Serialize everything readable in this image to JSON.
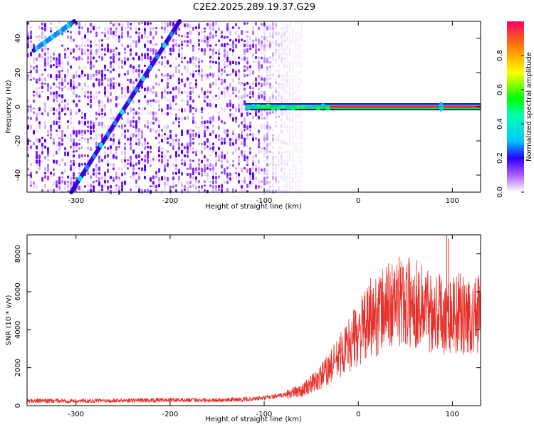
{
  "title": "C2E2.2025.289.19.37.G29",
  "chart_data": [
    {
      "type": "heatmap",
      "name": "spectrogram",
      "xlabel": "Height of straight line (km)",
      "ylabel": "Frequency (Hz)",
      "xlim": [
        -352,
        130
      ],
      "ylim": [
        -50,
        50
      ],
      "xticks": [
        -300,
        -200,
        -100,
        0,
        100
      ],
      "yticks": [
        -40,
        -20,
        0,
        20,
        40
      ],
      "grid": false,
      "noise_region_x": [
        -352,
        -75
      ],
      "diagonal_trace": {
        "x_start": -305,
        "y_start": -50,
        "x_end": -190,
        "y_end": 50
      },
      "diagonal_trace_upper": {
        "x_start": -345,
        "y_start": 33,
        "x_end": -302,
        "y_end": 50
      },
      "zero_line": {
        "x_start": -120,
        "x_end": 130,
        "y": 0
      },
      "colorbar": {
        "label": "Normalized spectral amplitude",
        "ticks": [
          0.0,
          0.2,
          0.4,
          0.6,
          0.8
        ],
        "range": [
          0,
          1
        ]
      }
    },
    {
      "type": "line",
      "name": "snr",
      "xlabel": "Height of straight line (km)",
      "ylabel": "SNR (10 * v/v)",
      "xlim": [
        -352,
        130
      ],
      "ylim": [
        0,
        9000
      ],
      "xticks": [
        -300,
        -200,
        -100,
        0,
        100
      ],
      "yticks": [
        0,
        2000,
        4000,
        6000,
        8000
      ],
      "color": "#e8302a",
      "series": [
        {
          "name": "SNR",
          "x": [
            -352,
            -300,
            -250,
            -200,
            -150,
            -120,
            -100,
            -80,
            -60,
            -50,
            -40,
            -30,
            -20,
            -10,
            0,
            10,
            20,
            30,
            40,
            50,
            60,
            70,
            80,
            90,
            100,
            110,
            120,
            130
          ],
          "y": [
            250,
            250,
            280,
            300,
            300,
            330,
            400,
            550,
            800,
            1100,
            1500,
            2000,
            2600,
            3200,
            3800,
            4300,
            4800,
            5200,
            5400,
            5500,
            5400,
            5200,
            5000,
            4900,
            4900,
            4800,
            4700,
            4800
          ]
        }
      ],
      "spikes": [
        {
          "x": 13,
          "y": 6700
        },
        {
          "x": 94,
          "y": 9000
        },
        {
          "x": 96,
          "y": 8800
        }
      ]
    }
  ]
}
